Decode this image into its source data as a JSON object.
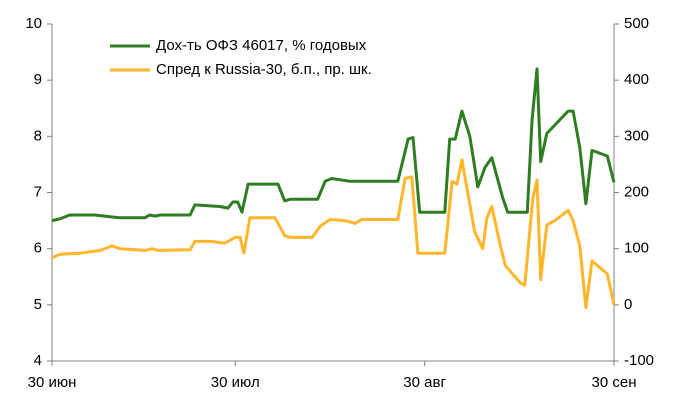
{
  "chart_data": {
    "type": "line",
    "xlim": [
      0,
      92
    ],
    "xticks": [
      {
        "value": 0,
        "label": "30 июн"
      },
      {
        "value": 30,
        "label": "30 июл"
      },
      {
        "value": 61,
        "label": "30 авг"
      },
      {
        "value": 92,
        "label": "30 сен"
      }
    ],
    "ylim": [
      4,
      10
    ],
    "yticks": [
      4,
      5,
      6,
      7,
      8,
      9,
      10
    ],
    "y2lim": [
      -100,
      500
    ],
    "y2ticks": [
      -100,
      0,
      100,
      200,
      300,
      400,
      500
    ],
    "legend": "top-left",
    "series": [
      {
        "name": "Дох-ть ОФЗ 46017, % годовых",
        "color": "#2e7d22",
        "axis": "y",
        "x": [
          0,
          1.3,
          2.9,
          7.0,
          9.5,
          11.1,
          15.2,
          16.0,
          16.9,
          17.7,
          22.6,
          23.4,
          27.5,
          28.8,
          29.6,
          30.4,
          31.1,
          32.1,
          37.0,
          38.1,
          39.0,
          43.5,
          44.7,
          45.8,
          48.8,
          56.6,
          58.3,
          59.1,
          60.2,
          64.3,
          65.1,
          66.0,
          67.1,
          68.4,
          69.7,
          70.9,
          72.0,
          73.8,
          74.6,
          77.8,
          78.6,
          79.4,
          80.0,
          81.0,
          82.3,
          84.5,
          85.3,
          86.4,
          87.4,
          88.4,
          90.9,
          92
        ],
        "values": [
          6.5,
          6.53,
          6.6,
          6.6,
          6.57,
          6.55,
          6.55,
          6.6,
          6.58,
          6.6,
          6.6,
          6.78,
          6.75,
          6.72,
          6.83,
          6.83,
          6.65,
          7.15,
          7.15,
          6.85,
          6.88,
          6.88,
          7.2,
          7.25,
          7.2,
          7.2,
          7.95,
          7.98,
          6.65,
          6.65,
          7.95,
          7.95,
          8.45,
          8.0,
          7.1,
          7.45,
          7.62,
          6.9,
          6.65,
          6.65,
          8.3,
          9.2,
          7.55,
          8.05,
          8.2,
          8.45,
          8.45,
          7.8,
          6.8,
          7.75,
          7.65,
          7.18
        ]
      },
      {
        "name": "Спред к Russia-30, б.п., пр. шк.",
        "color": "#ffb62a",
        "axis": "y2",
        "x": [
          0,
          1.3,
          4.6,
          7.9,
          9.8,
          11.1,
          15.2,
          16.4,
          17.4,
          22.6,
          23.4,
          25.9,
          28.3,
          30.0,
          30.8,
          31.4,
          32.4,
          36.5,
          38.1,
          39.0,
          42.6,
          43.9,
          45.5,
          48.0,
          49.6,
          50.7,
          56.6,
          57.8,
          58.9,
          59.9,
          64.3,
          65.5,
          66.3,
          67.1,
          69.2,
          70.5,
          71.2,
          72.0,
          73.3,
          74.2,
          76.6,
          77.4,
          78.7,
          79.4,
          80.0,
          81.0,
          82.3,
          84.5,
          85.3,
          86.4,
          87.4,
          88.4,
          90.9,
          92
        ],
        "values": [
          84,
          90,
          92,
          97,
          105,
          100,
          97,
          100,
          97,
          98,
          113,
          113,
          110,
          120,
          120,
          92,
          155,
          155,
          123,
          120,
          120,
          140,
          152,
          150,
          145,
          152,
          152,
          225,
          228,
          92,
          92,
          220,
          215,
          258,
          130,
          100,
          155,
          175,
          110,
          70,
          40,
          35,
          190,
          222,
          45,
          142,
          150,
          168,
          150,
          105,
          -5,
          78,
          55,
          0
        ]
      }
    ]
  }
}
